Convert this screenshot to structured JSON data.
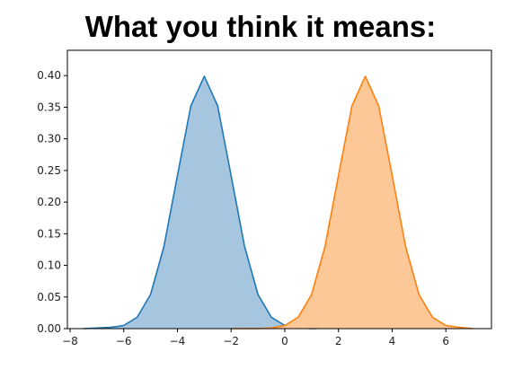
{
  "chart_data": {
    "type": "area",
    "title": "What you think it means:",
    "xlabel": "",
    "ylabel": "",
    "xlim": [
      -8.1,
      7.7
    ],
    "ylim": [
      0,
      0.44
    ],
    "xticks": [
      -8,
      -6,
      -4,
      -2,
      0,
      2,
      4,
      6
    ],
    "xtick_labels": [
      "−8",
      "−6",
      "−4",
      "−2",
      "0",
      "2",
      "4",
      "6"
    ],
    "yticks": [
      0.0,
      0.05,
      0.1,
      0.15,
      0.2,
      0.25,
      0.3,
      0.35,
      0.4
    ],
    "ytick_labels": [
      "0.00",
      "0.05",
      "0.10",
      "0.15",
      "0.20",
      "0.25",
      "0.30",
      "0.35",
      "0.40"
    ],
    "grid": false,
    "legend": "none",
    "series": [
      {
        "color": "#1f77b4",
        "fill": "#a6c6e0",
        "x": [
          -7.5,
          -6.5,
          -6.0,
          -5.5,
          -5.0,
          -4.5,
          -4.0,
          -3.5,
          -3.0,
          -2.5,
          -2.0,
          -1.5,
          -1.0,
          -0.5,
          0.0,
          0.5,
          1.0,
          1.2
        ],
        "y": [
          0.0,
          0.002,
          0.005,
          0.018,
          0.054,
          0.13,
          0.242,
          0.352,
          0.399,
          0.352,
          0.242,
          0.13,
          0.054,
          0.018,
          0.005,
          0.001,
          0.0,
          0.0
        ]
      },
      {
        "color": "#ff7f0e",
        "fill": "#fdc897",
        "x": [
          -2.0,
          -1.0,
          -0.5,
          0.0,
          0.5,
          1.0,
          1.5,
          2.0,
          2.5,
          3.0,
          3.5,
          4.0,
          4.5,
          5.0,
          5.5,
          6.0,
          6.5,
          7.0
        ],
        "y": [
          0.0,
          0.0,
          0.001,
          0.005,
          0.018,
          0.054,
          0.13,
          0.242,
          0.352,
          0.399,
          0.352,
          0.242,
          0.13,
          0.054,
          0.018,
          0.005,
          0.002,
          0.0
        ]
      }
    ]
  }
}
